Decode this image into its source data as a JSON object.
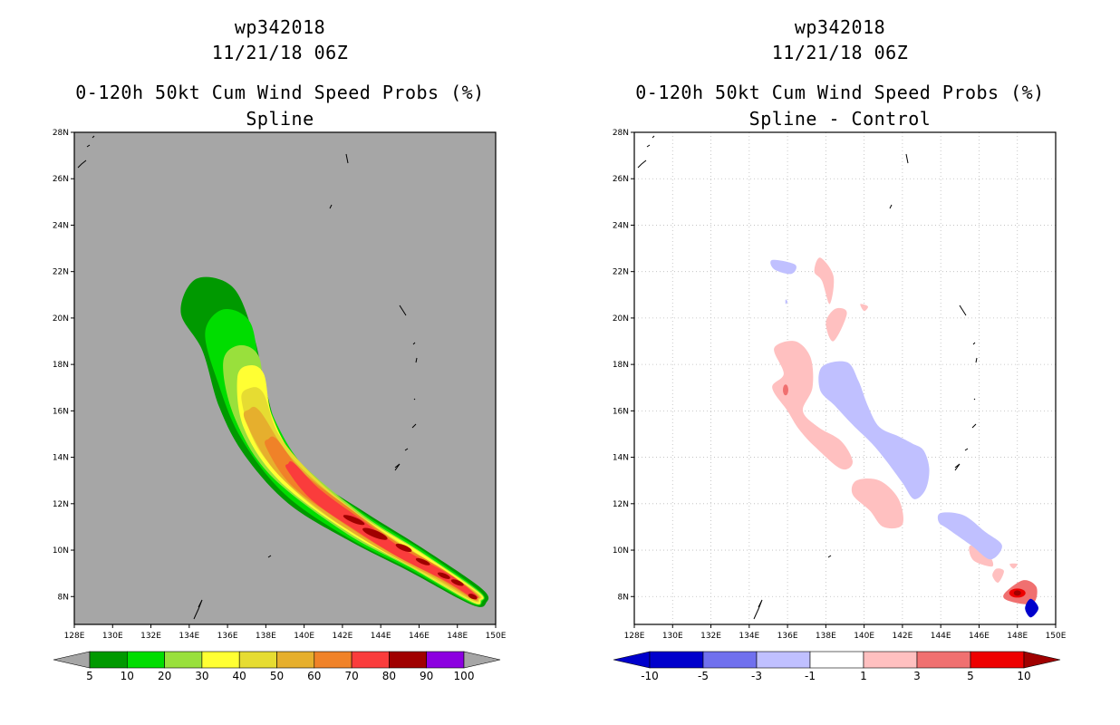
{
  "chart_data": [
    {
      "type": "filled-contour-map",
      "title": [
        "wp342018",
        "11/21/18 06Z",
        "0-120h 50kt Cum Wind Speed Probs (%)",
        "Spline"
      ],
      "x_ticks": [
        "128E",
        "130E",
        "132E",
        "134E",
        "136E",
        "138E",
        "140E",
        "142E",
        "144E",
        "146E",
        "148E",
        "150E"
      ],
      "y_ticks": [
        "8N",
        "10N",
        "12N",
        "14N",
        "16N",
        "18N",
        "20N",
        "22N",
        "24N",
        "26N",
        "28N"
      ],
      "xlim": [
        128,
        150
      ],
      "ylim": [
        6.8,
        28
      ],
      "grid": false,
      "legend": "bottom colorbar",
      "colorbar": {
        "labels": [
          "5",
          "10",
          "20",
          "30",
          "40",
          "50",
          "60",
          "70",
          "80",
          "90",
          "100"
        ],
        "colors": [
          "#009900",
          "#00dd00",
          "#99e03c",
          "#ffff33",
          "#e6dc32",
          "#e6af2d",
          "#f08228",
          "#fa3c3c",
          "#a00000",
          "#8c00e0"
        ],
        "ends": [
          "#a6a6a6",
          "#a6a6a6"
        ]
      },
      "levels": [
        {
          "min": 5,
          "center": [
            [
              134.9,
              20.8
            ],
            [
              136.0,
              19.0
            ],
            [
              136.8,
              16.5
            ],
            [
              137.8,
              14.6
            ],
            [
              139.8,
              12.6
            ],
            [
              142.8,
              11.0
            ],
            [
              145.8,
              9.6
            ],
            [
              149.0,
              8.0
            ]
          ],
          "halfwidth": [
            1.5,
            1.4,
            1.3,
            1.1,
            0.95,
            0.85,
            0.7,
            0.5
          ]
        },
        {
          "min": 10,
          "center": [
            [
              136.0,
              19.6
            ],
            [
              136.6,
              17.5
            ],
            [
              137.6,
              15.2
            ],
            [
              139.6,
              12.9
            ],
            [
              142.8,
              11.0
            ],
            [
              145.8,
              9.6
            ],
            [
              148.9,
              8.0
            ]
          ],
          "halfwidth": [
            1.2,
            1.15,
            1.0,
            0.85,
            0.75,
            0.6,
            0.4
          ]
        },
        {
          "min": 20,
          "center": [
            [
              136.7,
              18.2
            ],
            [
              137.2,
              16.0
            ],
            [
              138.8,
              13.7
            ],
            [
              142.5,
              11.2
            ],
            [
              145.8,
              9.6
            ],
            [
              148.9,
              8.0
            ]
          ],
          "halfwidth": [
            0.95,
            0.9,
            0.8,
            0.65,
            0.5,
            0.35
          ]
        },
        {
          "min": 30,
          "center": [
            [
              137.2,
              17.5
            ],
            [
              137.6,
              15.5
            ],
            [
              139.2,
              13.4
            ],
            [
              142.5,
              11.2
            ],
            [
              145.8,
              9.6
            ],
            [
              148.9,
              8.0
            ]
          ],
          "halfwidth": [
            0.7,
            0.8,
            0.7,
            0.55,
            0.45,
            0.3
          ]
        },
        {
          "min": 40,
          "center": [
            [
              137.3,
              16.6
            ],
            [
              138.2,
              14.6
            ],
            [
              140.5,
              12.5
            ],
            [
              143.5,
              10.7
            ],
            [
              146.5,
              9.2
            ],
            [
              148.9,
              8.0
            ]
          ],
          "halfwidth": [
            0.6,
            0.65,
            0.6,
            0.45,
            0.35,
            0.25
          ]
        },
        {
          "min": 50,
          "center": [
            [
              137.3,
              15.8
            ],
            [
              138.8,
              13.8
            ],
            [
              141.2,
              12.0
            ],
            [
              144.0,
              10.4
            ],
            [
              147.0,
              9.0
            ],
            [
              148.9,
              8.0
            ]
          ],
          "halfwidth": [
            0.45,
            0.55,
            0.5,
            0.4,
            0.3,
            0.2
          ]
        },
        {
          "min": 60,
          "center": [
            [
              138.3,
              14.6
            ],
            [
              139.6,
              13.1
            ],
            [
              142.0,
              11.6
            ],
            [
              144.5,
              10.2
            ],
            [
              147.3,
              8.9
            ],
            [
              148.9,
              8.0
            ]
          ],
          "halfwidth": [
            0.35,
            0.45,
            0.42,
            0.33,
            0.25,
            0.15
          ]
        },
        {
          "min": 70,
          "center": [
            [
              139.3,
              13.6
            ],
            [
              140.6,
              12.4
            ],
            [
              142.8,
              11.1
            ],
            [
              145.0,
              9.9
            ],
            [
              147.5,
              8.8
            ],
            [
              148.9,
              8.0
            ]
          ],
          "halfwidth": [
            0.25,
            0.35,
            0.32,
            0.25,
            0.2,
            0.12
          ]
        }
      ],
      "blobs_80": [
        [
          142.6,
          11.3,
          0.6,
          0.12
        ],
        [
          143.7,
          10.7,
          0.7,
          0.15
        ],
        [
          145.2,
          10.1,
          0.45,
          0.12
        ],
        [
          146.2,
          9.5,
          0.4,
          0.1
        ],
        [
          147.3,
          8.9,
          0.35,
          0.1
        ],
        [
          148.0,
          8.6,
          0.35,
          0.1
        ],
        [
          148.8,
          8.0,
          0.25,
          0.1
        ]
      ]
    },
    {
      "type": "filled-contour-map",
      "title": [
        "wp342018",
        "11/21/18 06Z",
        "0-120h 50kt Cum Wind Speed Probs (%)",
        "Spline - Control"
      ],
      "x_ticks": [
        "128E",
        "130E",
        "132E",
        "134E",
        "136E",
        "138E",
        "140E",
        "142E",
        "144E",
        "146E",
        "148E",
        "150E"
      ],
      "y_ticks": [
        "8N",
        "10N",
        "12N",
        "14N",
        "16N",
        "18N",
        "20N",
        "22N",
        "24N",
        "26N",
        "28N"
      ],
      "xlim": [
        128,
        150
      ],
      "ylim": [
        6.8,
        28
      ],
      "grid": true,
      "legend": "bottom colorbar",
      "colorbar": {
        "labels": [
          "-10",
          "-5",
          "-3",
          "-1",
          "1",
          "3",
          "5",
          "10"
        ],
        "colors": [
          "#0000cc",
          "#7070ee",
          "#c0c0ff",
          "#ffffff",
          "#ffc0c0",
          "#f07070",
          "#ee0000"
        ],
        "ends": [
          "#0000cc",
          "#a00000"
        ]
      },
      "positive_regions": [
        {
          "level": "1..3",
          "poly": [
            [
              135.3,
              18.7
            ],
            [
              136.4,
              19.0
            ],
            [
              137.2,
              18.3
            ],
            [
              137.3,
              17.0
            ],
            [
              136.8,
              16.0
            ],
            [
              137.6,
              15.3
            ],
            [
              138.8,
              14.7
            ],
            [
              139.4,
              13.8
            ],
            [
              138.8,
              13.5
            ],
            [
              137.5,
              14.4
            ],
            [
              136.6,
              15.2
            ],
            [
              136.0,
              16.0
            ],
            [
              135.2,
              17.0
            ],
            [
              135.8,
              17.6
            ]
          ]
        },
        {
          "level": "1..3",
          "poly": [
            [
              137.7,
              22.6
            ],
            [
              138.4,
              21.8
            ],
            [
              138.2,
              20.6
            ],
            [
              137.8,
              21.6
            ],
            [
              137.4,
              22.0
            ]
          ]
        },
        {
          "level": "1..3",
          "poly": [
            [
              138.5,
              20.4
            ],
            [
              139.1,
              20.2
            ],
            [
              138.4,
              19.0
            ],
            [
              138.0,
              19.8
            ]
          ]
        },
        {
          "level": "1..3",
          "poly": [
            [
              139.8,
              20.6
            ],
            [
              140.2,
              20.5
            ],
            [
              140.0,
              20.3
            ]
          ]
        },
        {
          "level": "1..3",
          "poly": [
            [
              139.6,
              13.0
            ],
            [
              140.8,
              13.0
            ],
            [
              141.8,
              12.2
            ],
            [
              142.0,
              11.1
            ],
            [
              141.0,
              11.0
            ],
            [
              140.3,
              11.7
            ],
            [
              139.4,
              12.4
            ]
          ]
        },
        {
          "level": "1..3",
          "poly": [
            [
              145.6,
              10.2
            ],
            [
              146.5,
              9.8
            ],
            [
              146.7,
              9.3
            ],
            [
              145.8,
              9.5
            ],
            [
              145.5,
              9.9
            ]
          ]
        },
        {
          "level": "1..3",
          "poly": [
            [
              146.9,
              9.2
            ],
            [
              147.3,
              9.1
            ],
            [
              147.0,
              8.6
            ],
            [
              146.7,
              8.9
            ]
          ]
        },
        {
          "level": "1..3",
          "poly": [
            [
              147.6,
              9.4
            ],
            [
              148.0,
              9.4
            ],
            [
              147.8,
              9.2
            ]
          ]
        },
        {
          "level": "3..5",
          "poly": [
            [
              147.3,
              8.1
            ],
            [
              148.3,
              8.7
            ],
            [
              149.0,
              8.4
            ],
            [
              148.8,
              7.7
            ],
            [
              147.6,
              7.8
            ]
          ]
        }
      ],
      "positive_peaks": [
        [
          135.9,
          16.9,
          "#f07070"
        ],
        [
          148.0,
          8.15,
          "#ee0000"
        ],
        [
          148.0,
          8.15,
          "#a00000"
        ]
      ],
      "negative_regions": [
        {
          "level": "-3..-1",
          "poly": [
            [
              137.8,
              17.9
            ],
            [
              139.1,
              18.1
            ],
            [
              139.7,
              17.3
            ],
            [
              140.2,
              16.2
            ],
            [
              140.8,
              15.3
            ],
            [
              141.8,
              14.9
            ],
            [
              142.5,
              14.6
            ],
            [
              143.1,
              14.3
            ],
            [
              143.4,
              13.5
            ],
            [
              143.2,
              12.6
            ],
            [
              142.6,
              12.2
            ],
            [
              142.0,
              12.9
            ],
            [
              141.2,
              13.8
            ],
            [
              140.4,
              14.6
            ],
            [
              139.4,
              15.4
            ],
            [
              138.5,
              16.2
            ],
            [
              137.7,
              16.9
            ]
          ]
        },
        {
          "level": "-3..-1",
          "poly": [
            [
              144.0,
              11.6
            ],
            [
              145.2,
              11.5
            ],
            [
              146.3,
              10.8
            ],
            [
              147.2,
              10.2
            ],
            [
              146.6,
              9.6
            ],
            [
              145.6,
              10.2
            ],
            [
              144.4,
              10.9
            ],
            [
              143.9,
              11.2
            ]
          ]
        },
        {
          "level": "-3..-1",
          "poly": [
            [
              135.2,
              22.5
            ],
            [
              136.4,
              22.3
            ],
            [
              136.2,
              21.9
            ],
            [
              135.3,
              22.1
            ]
          ]
        },
        {
          "level": "-3..-1",
          "poly": [
            [
              135.9,
              20.8
            ],
            [
              136.0,
              20.7
            ],
            [
              135.9,
              20.6
            ]
          ]
        },
        {
          "level": "-10..-5",
          "poly": [
            [
              148.7,
              7.9
            ],
            [
              149.1,
              7.5
            ],
            [
              148.7,
              7.1
            ],
            [
              148.4,
              7.5
            ]
          ]
        }
      ]
    }
  ]
}
